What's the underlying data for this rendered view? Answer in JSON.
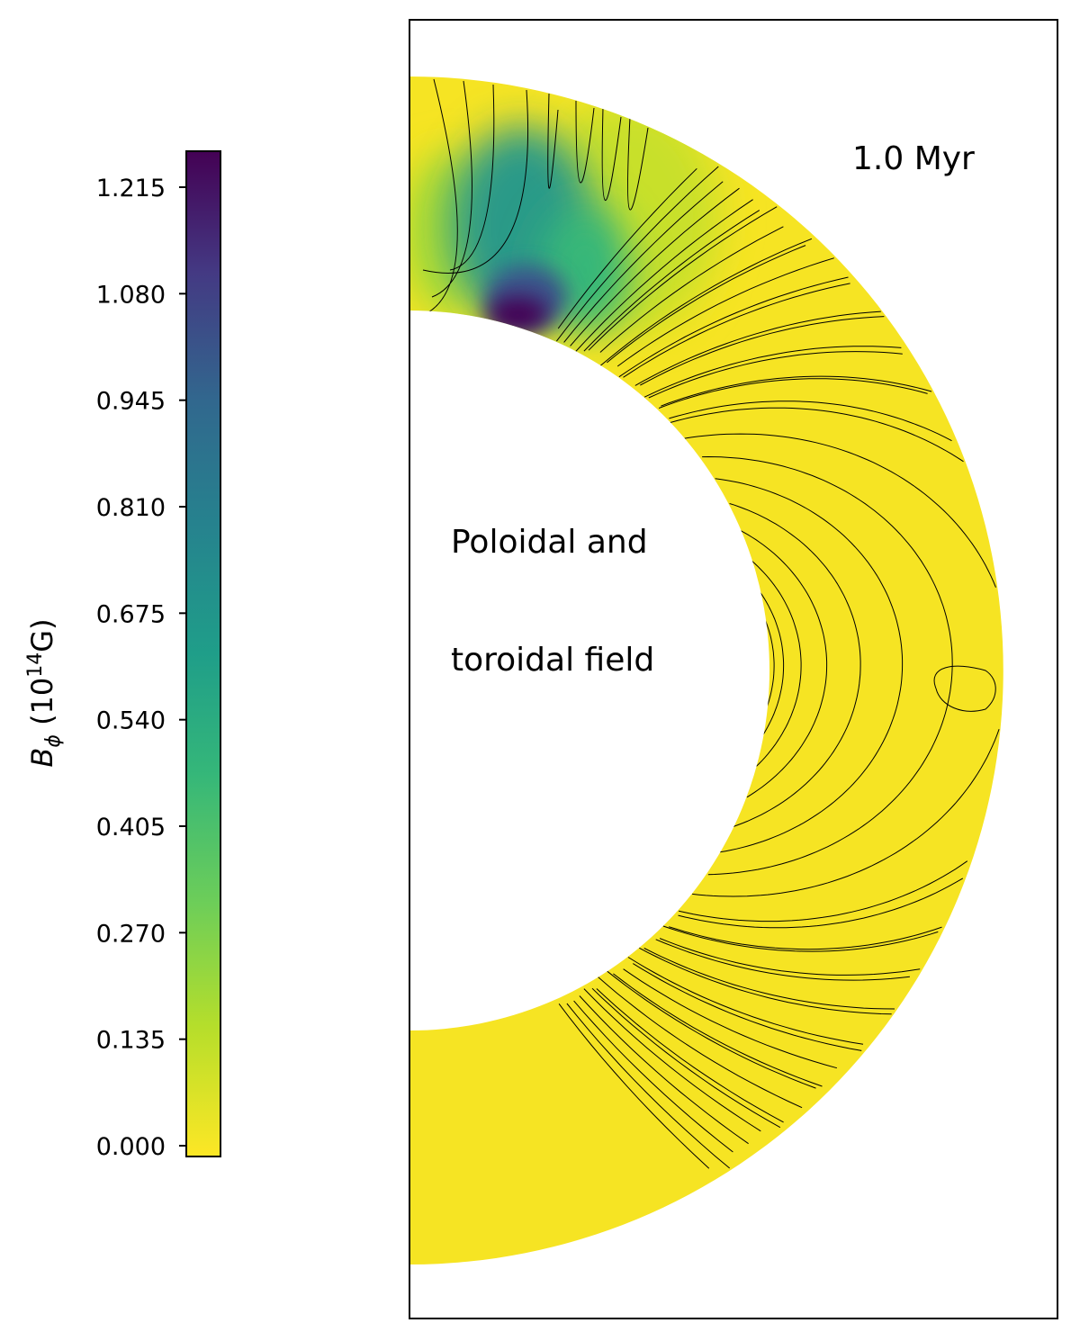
{
  "chart_data": {
    "type": "heatmap",
    "subtype": "meridional-cross-section-with-field-line-contours",
    "colormap": "viridis",
    "colorbar": {
      "label_main": "B",
      "label_sub": "ϕ",
      "label_unit_prefix": " (10",
      "label_unit_exp": "14",
      "label_unit_suffix": "G)",
      "range": [
        0.0,
        1.26
      ],
      "ticks": [
        "0.000",
        "0.135",
        "0.270",
        "0.405",
        "0.540",
        "0.675",
        "0.810",
        "0.945",
        "1.080",
        "1.215"
      ],
      "tick_values": [
        0,
        0.135,
        0.27,
        0.405,
        0.54,
        0.675,
        0.81,
        0.945,
        1.08,
        1.215
      ],
      "placement": "left"
    },
    "annotations": {
      "time": "1.0   Myr",
      "label_line1": "Poloidal and",
      "label_line2": "toroidal field"
    },
    "field_peak": {
      "value": 1.26,
      "location": "inner boundary, high latitude northern hemisphere"
    },
    "background_value": 0.0,
    "colors": {
      "low": "#fde725",
      "mid": "#21918c",
      "high": "#440154",
      "contour": "#000000"
    }
  }
}
